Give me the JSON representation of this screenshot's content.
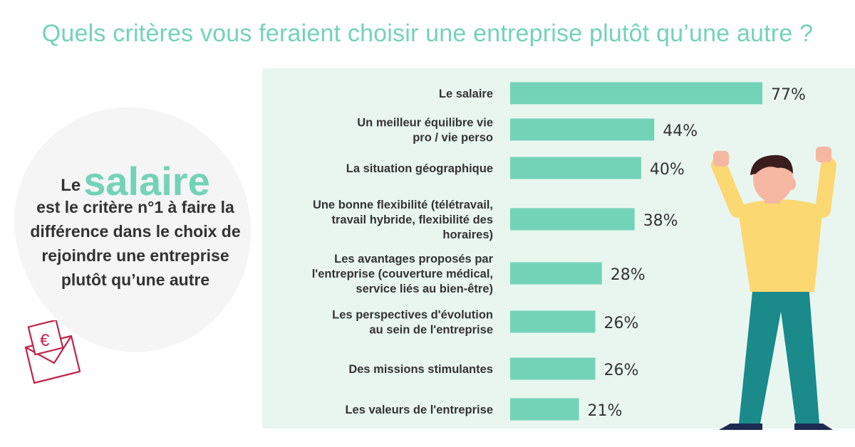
{
  "title": "Quels critères vous feraient choisir une entreprise plutôt qu’une autre ?",
  "highlight": {
    "prefix": "Le",
    "keyword": "salaire",
    "text": "est le critère n°1 à faire la différence dans le choix de rejoindre une entreprise plutôt qu’une autre"
  },
  "icons": {
    "envelope": "envelope-euro-icon",
    "person": "cheering-man-illustration",
    "euro_symbol": "€"
  },
  "colors": {
    "accent": "#73d3b7",
    "panel_bg": "#e9f6f0",
    "text": "#333333",
    "envelope": "#c0244a"
  },
  "chart_data": {
    "type": "bar",
    "orientation": "horizontal",
    "title": "Quels critères vous feraient choisir une entreprise plutôt qu’une autre ?",
    "categories": [
      [
        "Le salaire"
      ],
      [
        "Un meilleur équilibre vie",
        "pro / vie perso"
      ],
      [
        "La situation géographique"
      ],
      [
        "Une bonne flexibilité (télétravail,",
        "travail hybride, flexibilité des",
        "horaires)"
      ],
      [
        "Les avantages proposés par",
        "l'entreprise (couverture médical,",
        "service liés au bien-être)"
      ],
      [
        "Les perspectives d'évolution",
        "au sein de l'entreprise"
      ],
      [
        "Des missions stimulantes"
      ],
      [
        "Les valeurs de l'entreprise"
      ]
    ],
    "values": [
      77,
      44,
      40,
      38,
      28,
      26,
      26,
      21
    ],
    "value_labels": [
      "77%",
      "44%",
      "40%",
      "38%",
      "28%",
      "26%",
      "26%",
      "21%"
    ],
    "unit": "%",
    "xlim": [
      0,
      77
    ],
    "grid": false,
    "bar_color": "#73d3b7"
  }
}
